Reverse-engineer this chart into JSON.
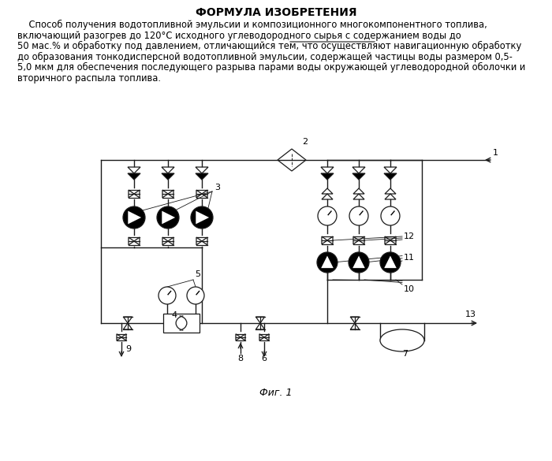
{
  "title": "ФОРМУЛА ИЗОБРЕТЕНИЯ",
  "paragraph": "    Способ получения водотопливной эмульсии и композиционного многокомпонентного топлива, включающий разогрев до 120°С исходного углеводородного сырья с содержанием воды до 50 мас.% и обработку под давлением, отличающийся тем, что осуществляют навигационную обработку до образования тонкодисперсной водотопливной эмульсии, содержащей частицы воды размером 0,5-5,0 мкм для обеспечения последующего разрыва парами воды окружающей углеводородной оболочки и вторичного распыла топлива.",
  "caption": "Фиг. 1",
  "bg_color": "#ffffff",
  "line_color": "#1a1a1a",
  "text_color": "#000000"
}
